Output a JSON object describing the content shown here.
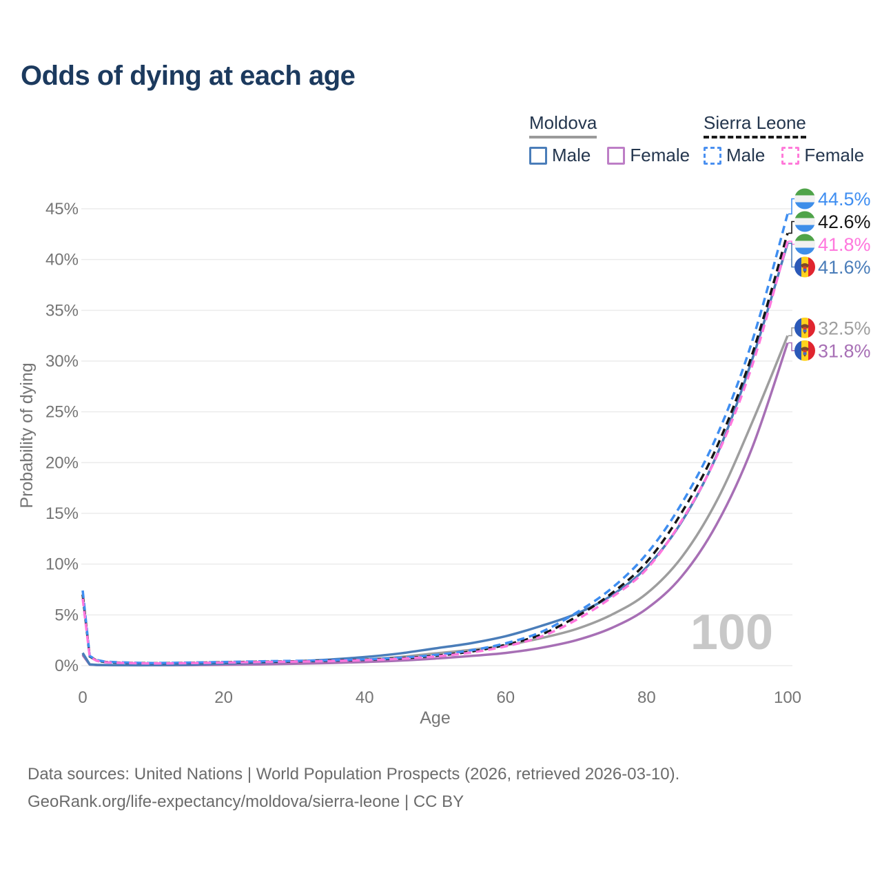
{
  "title": "Odds of dying at each age",
  "legend": {
    "groups": [
      {
        "label": "Moldova",
        "line_style": "solid",
        "underline_color": "#9a9a9a",
        "items": [
          {
            "label": "Male",
            "color": "#4a7db9"
          },
          {
            "label": "Female",
            "color": "#bd7ec6"
          }
        ]
      },
      {
        "label": "Sierra Leone",
        "line_style": "dashed",
        "underline_color": "#1a1a1a",
        "items": [
          {
            "label": "Male",
            "color": "#4a90f0"
          },
          {
            "label": "Female",
            "color": "#ff7ad9"
          }
        ]
      }
    ]
  },
  "flags": {
    "sierra_leone": {
      "stripes": [
        "#4fa349",
        "#f1f1f1",
        "#3e8ee9"
      ],
      "orientation": "horizontal"
    },
    "moldova": {
      "stripes": [
        "#2b59b8",
        "#ffd21d",
        "#e0252f"
      ],
      "orientation": "vertical",
      "emblem_colors": {
        "eagle": "#7c4a28",
        "shield_top": "#d33b2f",
        "shield_bottom": "#3f6bc9"
      }
    }
  },
  "chart_data": {
    "type": "line",
    "title": "Odds of dying at each age",
    "xlabel": "Age",
    "ylabel": "Probability of dying",
    "xlim": [
      0,
      100
    ],
    "ylim": [
      0,
      45
    ],
    "x_ticks": [
      0,
      20,
      40,
      60,
      80,
      100
    ],
    "y_ticks": [
      0,
      5,
      10,
      15,
      20,
      25,
      30,
      35,
      40,
      45
    ],
    "y_tick_suffix": "%",
    "grid": true,
    "legend_position": "top-right",
    "watermark": "100",
    "x": [
      0,
      1,
      2,
      3,
      5,
      10,
      15,
      20,
      25,
      30,
      35,
      40,
      45,
      50,
      55,
      60,
      65,
      70,
      75,
      80,
      85,
      90,
      95,
      100
    ],
    "series": [
      {
        "name": "Moldova Both sexes",
        "country": "Moldova",
        "sex": "Both",
        "flag": "moldova",
        "color": "#9e9e9e",
        "dashed": false,
        "end_label": "32.5%",
        "values": [
          1.15,
          0.11,
          0.07,
          0.06,
          0.05,
          0.05,
          0.07,
          0.15,
          0.22,
          0.3,
          0.43,
          0.6,
          0.85,
          1.2,
          1.55,
          2.0,
          2.7,
          3.6,
          5.0,
          7.1,
          10.7,
          16.3,
          24.0,
          32.5
        ]
      },
      {
        "name": "Moldova Female",
        "country": "Moldova",
        "sex": "Female",
        "flag": "moldova",
        "color": "#a76fb5",
        "dashed": false,
        "end_label": "31.8%",
        "values": [
          1.05,
          0.1,
          0.06,
          0.05,
          0.04,
          0.04,
          0.05,
          0.08,
          0.12,
          0.18,
          0.26,
          0.36,
          0.5,
          0.7,
          0.95,
          1.25,
          1.75,
          2.5,
          3.7,
          5.6,
          8.8,
          14.0,
          21.5,
          31.8
        ]
      },
      {
        "name": "Moldova Male",
        "country": "Moldova",
        "sex": "Male",
        "flag": "moldova",
        "color": "#4a7db9",
        "dashed": false,
        "end_label": "41.6%",
        "values": [
          1.25,
          0.12,
          0.08,
          0.06,
          0.05,
          0.05,
          0.09,
          0.2,
          0.3,
          0.42,
          0.6,
          0.85,
          1.2,
          1.7,
          2.2,
          2.9,
          3.9,
          5.1,
          6.9,
          9.7,
          14.2,
          20.8,
          30.2,
          41.6
        ]
      },
      {
        "name": "Sierra Leone Both sexes",
        "country": "Sierra Leone",
        "sex": "Both",
        "flag": "sierra_leone",
        "color": "#161616",
        "dashed": true,
        "end_label": "42.6%",
        "values": [
          7.0,
          0.9,
          0.5,
          0.38,
          0.3,
          0.24,
          0.27,
          0.33,
          0.38,
          0.43,
          0.49,
          0.58,
          0.72,
          0.97,
          1.38,
          2.05,
          3.05,
          4.8,
          7.1,
          10.2,
          15.1,
          21.6,
          30.7,
          42.6
        ]
      },
      {
        "name": "Sierra Leone Male",
        "country": "Sierra Leone",
        "sex": "Male",
        "flag": "sierra_leone",
        "color": "#3f8ef1",
        "dashed": true,
        "end_label": "44.5%",
        "values": [
          7.4,
          0.95,
          0.55,
          0.42,
          0.33,
          0.26,
          0.3,
          0.36,
          0.42,
          0.47,
          0.53,
          0.62,
          0.78,
          1.05,
          1.5,
          2.2,
          3.3,
          5.2,
          7.6,
          11.0,
          16.0,
          22.7,
          32.0,
          44.5
        ]
      },
      {
        "name": "Sierra Leone Female",
        "country": "Sierra Leone",
        "sex": "Female",
        "flag": "sierra_leone",
        "color": "#ff77dd",
        "dashed": true,
        "end_label": "41.8%",
        "values": [
          6.6,
          0.85,
          0.47,
          0.35,
          0.28,
          0.22,
          0.25,
          0.3,
          0.35,
          0.4,
          0.45,
          0.54,
          0.67,
          0.9,
          1.28,
          1.9,
          2.85,
          4.5,
          6.7,
          9.5,
          14.3,
          20.7,
          29.6,
          41.8
        ]
      }
    ]
  },
  "footer": {
    "line1": "Data sources: United Nations | World Population Prospects (2026, retrieved 2026-03-10).",
    "line2": "GeoRank.org/life-expectancy/moldova/sierra-leone | CC BY"
  }
}
